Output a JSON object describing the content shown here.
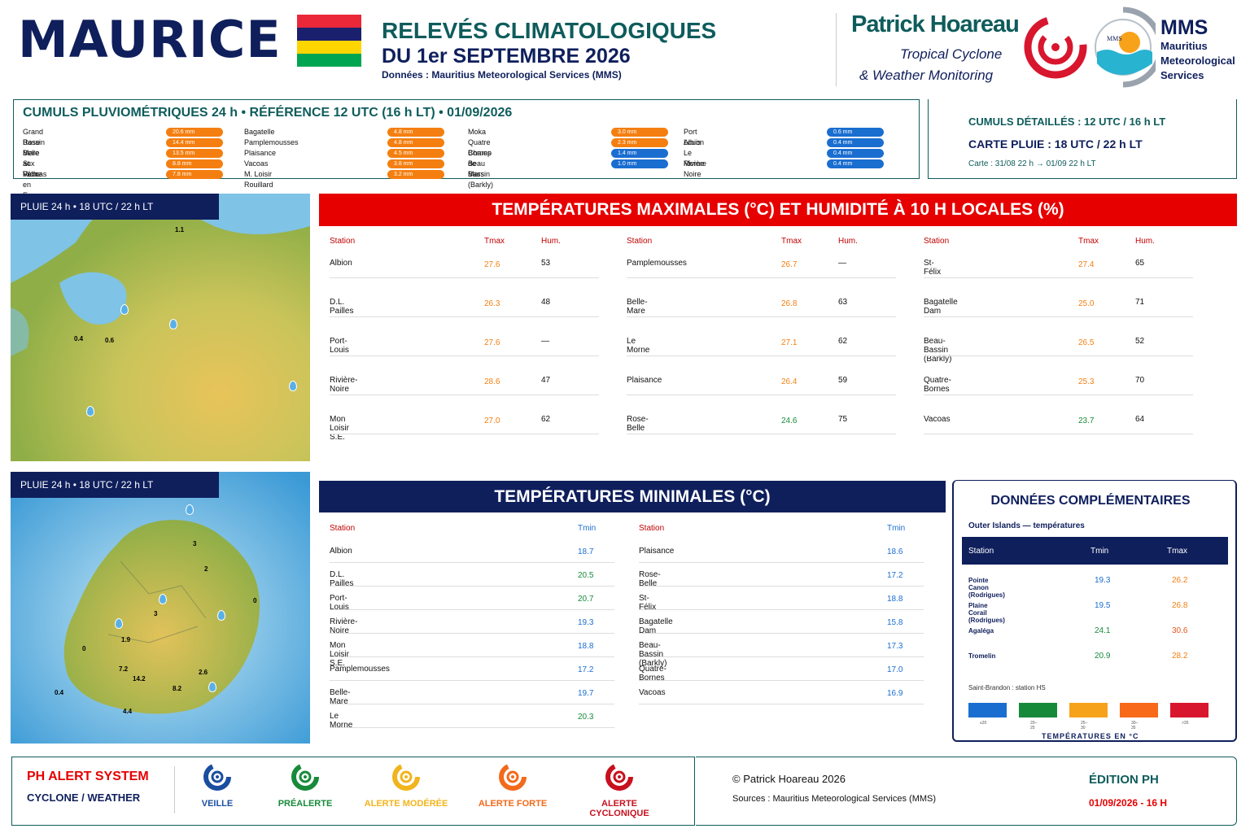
{
  "header": {
    "country": "MAURICE",
    "title_line1": "RELEVÉS CLIMATOLOGIQUES",
    "title_line2": "DU 1er SEPTEMBRE 2026",
    "source_line": "Données : Mauritius Meteorological Services (MMS)",
    "brand_name": "Patrick Hoareau",
    "brand_tag1": "Tropical Cyclone",
    "brand_tag2": "& Weather Monitoring",
    "mms_abbr": "MMS",
    "mms_full": "Mauritius Meteorological Services",
    "mms_logo_text": "MMS",
    "flag_colors": [
      "#ea2839",
      "#1a206d",
      "#ffd500",
      "#00a551"
    ]
  },
  "rain": {
    "title": "CUMULS PLUVIOMÉTRIQUES 24 h • RÉFÉRENCE 12 UTC (16 h LT) • 01/09/2026",
    "col1": [
      {
        "name": "Grand Bassin",
        "value": "20.6 mm"
      },
      {
        "name": "Rose Belle",
        "value": "14.4 mm"
      },
      {
        "name": "Mare aux Vacoas",
        "value": "13.5 mm"
      },
      {
        "name": "St Félix",
        "value": "8.8 mm"
      },
      {
        "name": "Riche en Eau",
        "value": "7.8 mm"
      }
    ],
    "col2": [
      {
        "name": "Bagatelle",
        "value": "4.8 mm"
      },
      {
        "name": "Pamplemousses",
        "value": "4.8 mm"
      },
      {
        "name": "Plaisance",
        "value": "4.5 mm"
      },
      {
        "name": "Vacoas",
        "value": "3.8 mm"
      },
      {
        "name": "M. Loisir Rouillard",
        "value": "3.2 mm"
      }
    ],
    "col3": [
      {
        "name": "Moka",
        "value": "3.0 mm"
      },
      {
        "name": "Quatre Bornes",
        "value": "2.3 mm"
      },
      {
        "name": "Champ de Mars",
        "value": "1.4 mm"
      },
      {
        "name": "Beau Bassin (Barkly)",
        "value": "1.0 mm"
      }
    ],
    "col4": [
      {
        "name": "Port Louis",
        "value": "0.6 mm"
      },
      {
        "name": "Albion",
        "value": "0.4 mm"
      },
      {
        "name": "Le Morne",
        "value": "0.4 mm"
      },
      {
        "name": "Rivière Noire",
        "value": "0.4 mm"
      }
    ],
    "detail_title": "CUMULS DÉTAILLÉS : 12 UTC / 16 h LT",
    "map_title": "CARTE PLUIE : 18 UTC / 22 h LT",
    "map_period": "Carte : 31/08 22 h → 01/09 22 h LT"
  },
  "map1": {
    "label": "PLUIE 24 h • 18 UTC / 22 h LT",
    "values": [
      "1.1",
      "0.4",
      "0.6"
    ]
  },
  "map2": {
    "label": "PLUIE 24 h • 18 UTC / 22 h LT",
    "values": [
      "3",
      "2",
      "0",
      "3",
      "1.9",
      "0",
      "7.2",
      "14.2",
      "2.6",
      "8.2",
      "0.4",
      "4.4"
    ]
  },
  "tmax": {
    "title": "TEMPÉRATURES MAXIMALES (°C) ET HUMIDITÉ À 10 H LOCALES (%)",
    "h_station": "Station",
    "h_tmax": "Tmax",
    "h_hum": "Hum.",
    "cols": [
      [
        {
          "station": "Albion",
          "tmax": "27.6",
          "hum": "53",
          "c": "or"
        },
        {
          "station": "D.L. Pailles",
          "tmax": "26.3",
          "hum": "48",
          "c": "or"
        },
        {
          "station": "Port-Louis",
          "tmax": "27.6",
          "hum": "—",
          "c": "or"
        },
        {
          "station": "Rivière-Noire",
          "tmax": "28.6",
          "hum": "47",
          "c": "or"
        },
        {
          "station": "Mon Loisir S.E.",
          "tmax": "27.0",
          "hum": "62",
          "c": "or"
        }
      ],
      [
        {
          "station": "Pamplemousses",
          "tmax": "26.7",
          "hum": "—",
          "c": "or"
        },
        {
          "station": "Belle-Mare",
          "tmax": "26.8",
          "hum": "63",
          "c": "or"
        },
        {
          "station": "Le Morne",
          "tmax": "27.1",
          "hum": "62",
          "c": "or"
        },
        {
          "station": "Plaisance",
          "tmax": "26.4",
          "hum": "59",
          "c": "or"
        },
        {
          "station": "Rose-Belle",
          "tmax": "24.6",
          "hum": "75",
          "c": "gr"
        }
      ],
      [
        {
          "station": "St-Félix",
          "tmax": "27.4",
          "hum": "65",
          "c": "or"
        },
        {
          "station": "Bagatelle Dam",
          "tmax": "25.0",
          "hum": "71",
          "c": "or"
        },
        {
          "station": "Beau-Bassin (Barkly)",
          "tmax": "26.5",
          "hum": "52",
          "c": "or"
        },
        {
          "station": "Quatre-Bornes",
          "tmax": "25.3",
          "hum": "70",
          "c": "or"
        },
        {
          "station": "Vacoas",
          "tmax": "23.7",
          "hum": "64",
          "c": "gr"
        }
      ]
    ]
  },
  "tmin": {
    "title": "TEMPÉRATURES MINIMALES (°C)",
    "h_station": "Station",
    "h_tmin": "Tmin",
    "cols": [
      [
        {
          "station": "Albion",
          "tmin": "18.7",
          "c": "bl"
        },
        {
          "station": "D.L. Pailles",
          "tmin": "20.5",
          "c": "gr"
        },
        {
          "station": "Port-Louis",
          "tmin": "20.7",
          "c": "gr"
        },
        {
          "station": "Rivière-Noire",
          "tmin": "19.3",
          "c": "bl"
        },
        {
          "station": "Mon Loisir S.E.",
          "tmin": "18.8",
          "c": "bl"
        },
        {
          "station": "Pamplemousses",
          "tmin": "17.2",
          "c": "bl"
        },
        {
          "station": "Belle-Mare",
          "tmin": "19.7",
          "c": "bl"
        },
        {
          "station": "Le Morne",
          "tmin": "20.3",
          "c": "gr"
        }
      ],
      [
        {
          "station": "Plaisance",
          "tmin": "18.6",
          "c": "bl"
        },
        {
          "station": "Rose-Belle",
          "tmin": "17.2",
          "c": "bl"
        },
        {
          "station": "St-Félix",
          "tmin": "18.8",
          "c": "bl"
        },
        {
          "station": "Bagatelle Dam",
          "tmin": "15.8",
          "c": "bl"
        },
        {
          "station": "Beau-Bassin (Barkly)",
          "tmin": "17.3",
          "c": "bl"
        },
        {
          "station": "Quatre-Bornes",
          "tmin": "17.0",
          "c": "bl"
        },
        {
          "station": "Vacoas",
          "tmin": "16.9",
          "c": "bl"
        }
      ]
    ]
  },
  "complement": {
    "title": "DONNÉES COMPLÉMENTAIRES",
    "subtitle": "Outer Islands — températures",
    "h_station": "Station",
    "h_tmin": "Tmin",
    "h_tmax": "Tmax",
    "rows": [
      {
        "station": "Pointe Canon (Rodrigues)",
        "tmin": "19.3",
        "tmax": "26.2",
        "cmin": "bl",
        "cmax": "or"
      },
      {
        "station": "Plaine Corail (Rodrigues)",
        "tmin": "19.5",
        "tmax": "26.8",
        "cmin": "bl",
        "cmax": "or"
      },
      {
        "station": "Agaléga",
        "tmin": "24.1",
        "tmax": "30.6",
        "cmin": "gr",
        "cmax": "or2"
      },
      {
        "station": "Tromelin",
        "tmin": "20.9",
        "tmax": "28.2",
        "cmin": "gr",
        "cmax": "or"
      }
    ],
    "note": "Saint-Brandon : station HS",
    "legend_title": "TEMPÉRATURES EN °C",
    "legend": [
      {
        "label": "≤20",
        "color": "#1a6ed0"
      },
      {
        "label": "20–25",
        "color": "#178a3a"
      },
      {
        "label": "25–30",
        "color": "#f7a21b"
      },
      {
        "label": "30–35",
        "color": "#f86a1a"
      },
      {
        "label": ">35",
        "color": "#d8162e"
      }
    ]
  },
  "footer": {
    "system_name": "PH ALERT SYSTEM",
    "system_sub": "CYCLONE / WEATHER",
    "levels": [
      {
        "label": "VEILLE",
        "color": "#1a4ea0"
      },
      {
        "label": "PRÉALERTE",
        "color": "#178a3a"
      },
      {
        "label": "ALERTE MODÉRÉE",
        "color": "#f2b41c"
      },
      {
        "label": "ALERTE FORTE",
        "color": "#f26a1a"
      },
      {
        "label": "ALERTE CYCLONIQUE",
        "color": "#c8101e"
      }
    ],
    "copyright": "© Patrick Hoareau 2026",
    "sources": "Sources : Mauritius Meteorological Services (MMS)",
    "edition": "ÉDITION PH",
    "edition_date": "01/09/2026 - 16 H"
  }
}
